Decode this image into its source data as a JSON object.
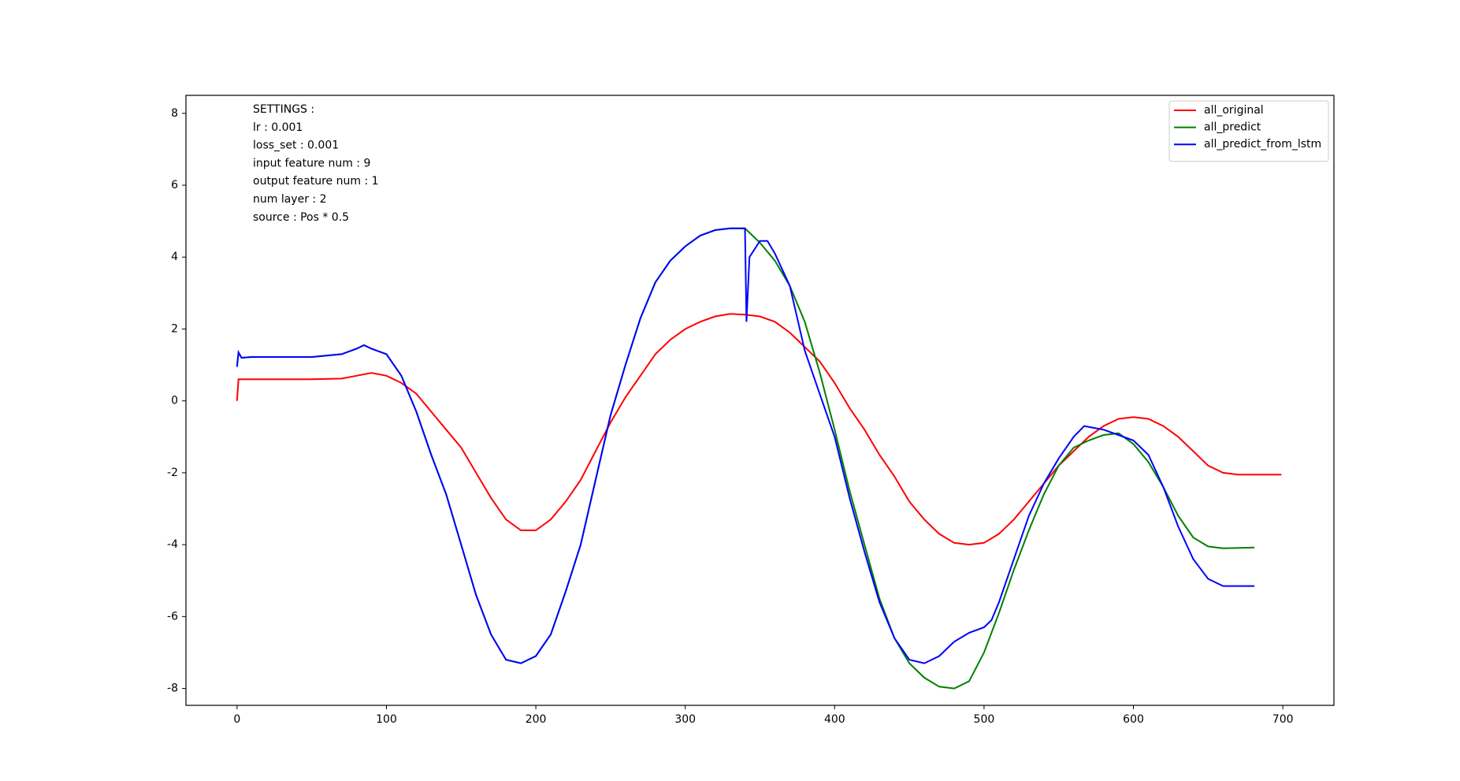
{
  "chart_data": {
    "type": "line",
    "annotations": [
      "SETTINGS :",
      "lr : 0.001",
      "loss_set : 0.001",
      "input feature num : 9",
      "output feature num : 1",
      "num layer : 2",
      "source : Pos * 0.5"
    ],
    "xlim": [
      -34.2,
      734.2
    ],
    "xticks": [
      0,
      100,
      200,
      300,
      400,
      500,
      600,
      700
    ],
    "ylim": [
      -8.47,
      8.5
    ],
    "yticks": [
      -8,
      -6,
      -4,
      -2,
      0,
      2,
      4,
      6,
      8
    ],
    "legend": "upper right",
    "series": [
      {
        "name": "all_original",
        "color": "#ff0000",
        "x": [
          0,
          1,
          10,
          50,
          70,
          80,
          90,
          100,
          110,
          120,
          130,
          140,
          150,
          160,
          170,
          180,
          190,
          200,
          210,
          220,
          230,
          240,
          250,
          260,
          270,
          280,
          290,
          300,
          310,
          320,
          330,
          340,
          350,
          360,
          370,
          380,
          390,
          400,
          410,
          420,
          430,
          440,
          450,
          460,
          470,
          480,
          490,
          500,
          510,
          520,
          530,
          540,
          550,
          560,
          570,
          580,
          590,
          600,
          610,
          620,
          630,
          640,
          650,
          660,
          670,
          680,
          699
        ],
        "values": [
          0,
          0.6,
          0.6,
          0.6,
          0.62,
          0.7,
          0.78,
          0.7,
          0.5,
          0.2,
          -0.3,
          -0.8,
          -1.3,
          -2,
          -2.7,
          -3.3,
          -3.6,
          -3.6,
          -3.3,
          -2.8,
          -2.2,
          -1.4,
          -0.6,
          0.1,
          0.7,
          1.3,
          1.7,
          2.0,
          2.2,
          2.35,
          2.42,
          2.4,
          2.35,
          2.2,
          1.9,
          1.5,
          1.1,
          0.5,
          -0.2,
          -0.8,
          -1.5,
          -2.1,
          -2.8,
          -3.3,
          -3.7,
          -3.95,
          -4.0,
          -3.95,
          -3.7,
          -3.3,
          -2.8,
          -2.3,
          -1.8,
          -1.4,
          -1.0,
          -0.7,
          -0.5,
          -0.45,
          -0.5,
          -0.7,
          -1.0,
          -1.4,
          -1.8,
          -2.0,
          -2.05,
          -2.05,
          -2.05
        ]
      },
      {
        "name": "all_predict",
        "color": "#008000",
        "x": [
          0,
          1,
          3,
          10,
          50,
          70,
          80,
          85,
          90,
          100,
          110,
          120,
          130,
          140,
          150,
          160,
          170,
          180,
          190,
          200,
          210,
          220,
          230,
          240,
          250,
          260,
          270,
          280,
          290,
          300,
          310,
          320,
          330,
          340,
          345,
          350,
          360,
          370,
          380,
          390,
          400,
          410,
          420,
          430,
          440,
          450,
          460,
          470,
          480,
          490,
          500,
          510,
          520,
          530,
          540,
          550,
          560,
          570,
          580,
          590,
          600,
          610,
          620,
          630,
          640,
          650,
          660,
          681
        ],
        "values": [
          0.95,
          1.35,
          1.2,
          1.22,
          1.22,
          1.3,
          1.45,
          1.55,
          1.45,
          1.3,
          0.7,
          -0.3,
          -1.5,
          -2.6,
          -4.0,
          -5.4,
          -6.5,
          -7.2,
          -7.3,
          -7.1,
          -6.5,
          -5.3,
          -4.0,
          -2.2,
          -0.4,
          1.0,
          2.3,
          3.3,
          3.9,
          4.3,
          4.6,
          4.75,
          4.8,
          4.8,
          4.6,
          4.4,
          3.9,
          3.2,
          2.2,
          0.8,
          -0.8,
          -2.5,
          -4.0,
          -5.5,
          -6.6,
          -7.3,
          -7.7,
          -7.95,
          -8.0,
          -7.8,
          -7.0,
          -5.9,
          -4.7,
          -3.6,
          -2.6,
          -1.8,
          -1.3,
          -1.1,
          -0.95,
          -0.9,
          -1.2,
          -1.7,
          -2.4,
          -3.2,
          -3.8,
          -4.05,
          -4.1,
          -4.08
        ]
      },
      {
        "name": "all_predict_from_lstm",
        "color": "#0000ff",
        "x": [
          0,
          1,
          3,
          10,
          50,
          70,
          80,
          85,
          90,
          100,
          110,
          120,
          130,
          140,
          150,
          160,
          170,
          180,
          190,
          200,
          210,
          220,
          230,
          240,
          250,
          260,
          270,
          280,
          290,
          300,
          310,
          320,
          330,
          340,
          341,
          343,
          350,
          355,
          360,
          370,
          380,
          390,
          400,
          410,
          420,
          430,
          440,
          450,
          460,
          470,
          480,
          490,
          500,
          505,
          510,
          520,
          530,
          540,
          550,
          560,
          567,
          580,
          590,
          600,
          610,
          620,
          630,
          640,
          650,
          660,
          681
        ],
        "values": [
          0.95,
          1.35,
          1.2,
          1.22,
          1.22,
          1.3,
          1.45,
          1.55,
          1.45,
          1.3,
          0.7,
          -0.3,
          -1.5,
          -2.6,
          -4.0,
          -5.4,
          -6.5,
          -7.2,
          -7.3,
          -7.1,
          -6.5,
          -5.3,
          -4.0,
          -2.2,
          -0.4,
          1.0,
          2.3,
          3.3,
          3.9,
          4.3,
          4.6,
          4.75,
          4.8,
          4.8,
          2.2,
          4.0,
          4.45,
          4.45,
          4.1,
          3.2,
          1.4,
          0.2,
          -1.0,
          -2.7,
          -4.2,
          -5.6,
          -6.6,
          -7.2,
          -7.3,
          -7.1,
          -6.7,
          -6.45,
          -6.3,
          -6.1,
          -5.6,
          -4.4,
          -3.2,
          -2.3,
          -1.6,
          -1.0,
          -0.7,
          -0.8,
          -0.95,
          -1.1,
          -1.5,
          -2.4,
          -3.5,
          -4.4,
          -4.95,
          -5.15,
          -5.15
        ]
      }
    ]
  }
}
